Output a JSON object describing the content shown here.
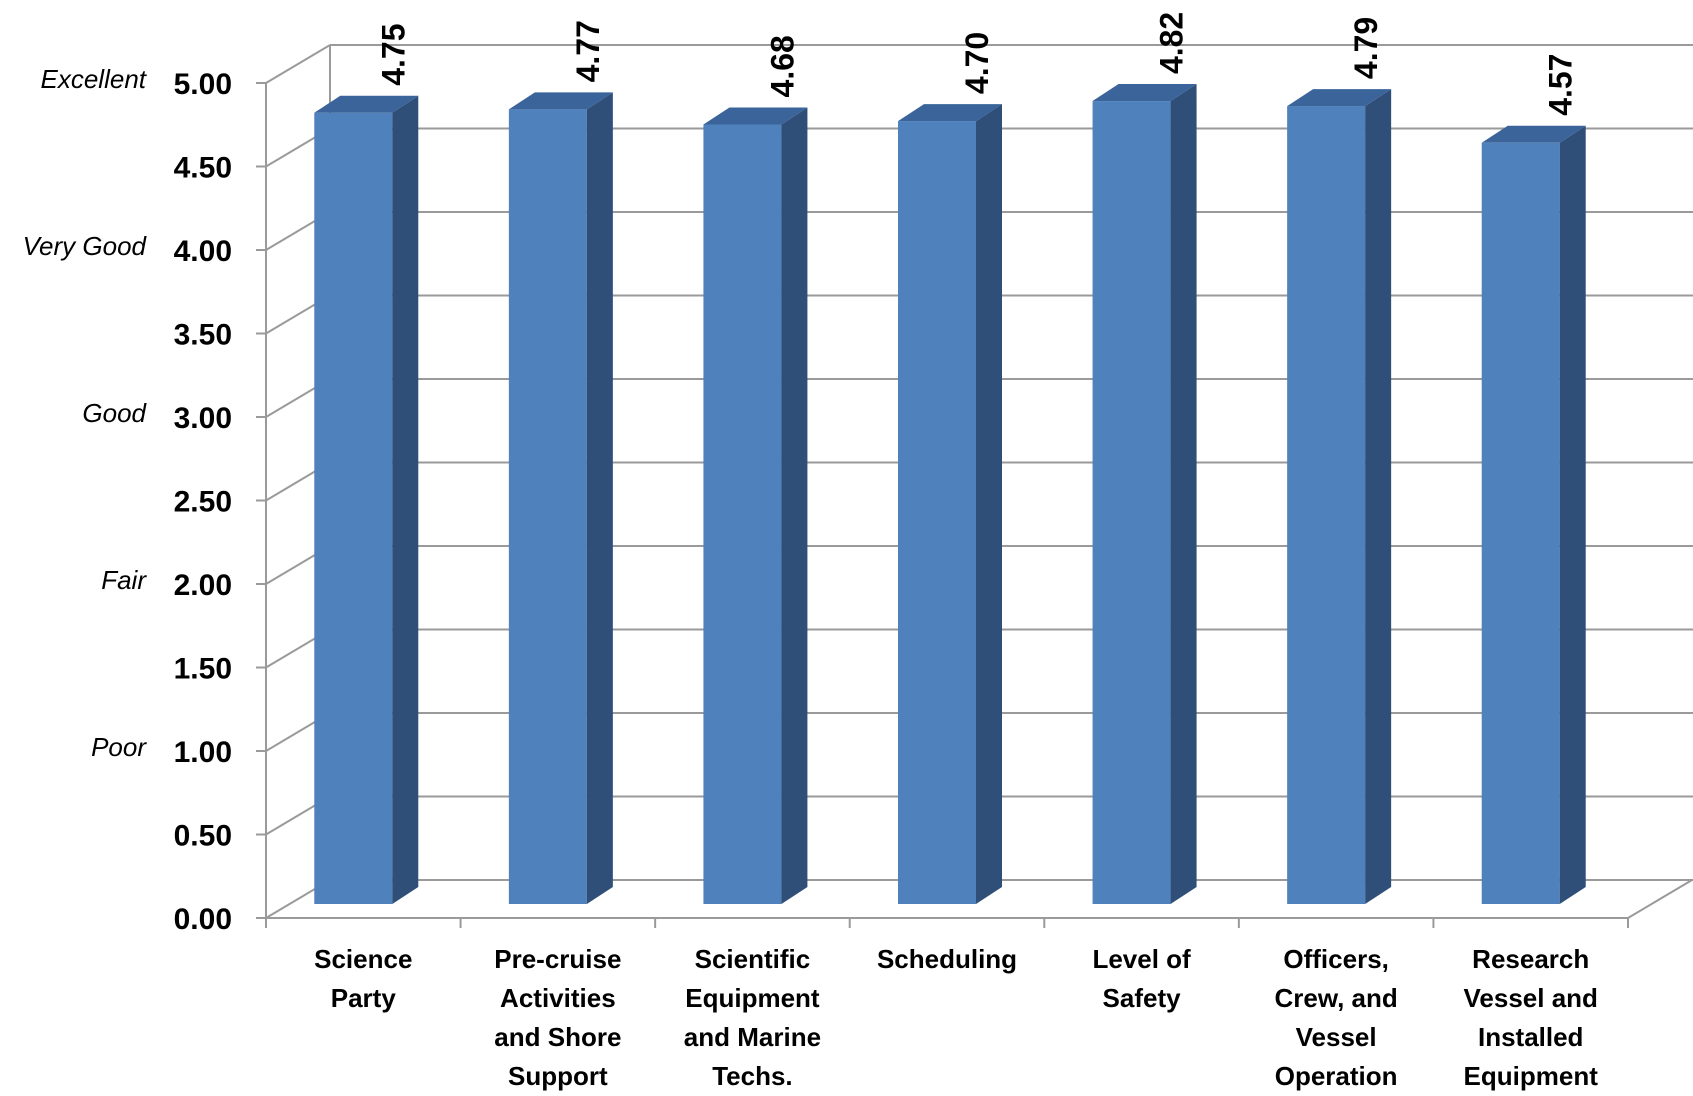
{
  "chart_data": {
    "type": "bar",
    "categories": [
      [
        "Science",
        "Party"
      ],
      [
        "Pre-cruise",
        "Activities",
        "and Shore",
        "Support"
      ],
      [
        "Scientific",
        "Equipment",
        "and Marine",
        "Techs."
      ],
      [
        "Scheduling"
      ],
      [
        "Level of",
        "Safety"
      ],
      [
        "Officers,",
        "Crew, and",
        "Vessel",
        "Operation"
      ],
      [
        "Research",
        "Vessel and",
        "Installed",
        "Equipment"
      ]
    ],
    "values": [
      4.75,
      4.77,
      4.68,
      4.7,
      4.82,
      4.79,
      4.57
    ],
    "value_labels": [
      "4.75",
      "4.77",
      "4.68",
      "4.70",
      "4.82",
      "4.79",
      "4.57"
    ],
    "yticks": [
      "0.00",
      "0.50",
      "1.00",
      "1.50",
      "2.00",
      "2.50",
      "3.00",
      "3.50",
      "4.00",
      "4.50",
      "5.00"
    ],
    "ylim": [
      0,
      5
    ],
    "rating_labels": [
      {
        "value": 5,
        "text": "Excellent"
      },
      {
        "value": 4,
        "text": "Very Good"
      },
      {
        "value": 3,
        "text": "Good"
      },
      {
        "value": 2,
        "text": "Fair"
      },
      {
        "value": 1,
        "text": "Poor"
      }
    ],
    "title": "",
    "xlabel": "",
    "ylabel": "",
    "grid": true,
    "style": "3d-column",
    "colors": {
      "bar_front": "#4F81BD",
      "bar_side": "#2F4F79",
      "bar_top": "#3A649A",
      "grid": "#9a9a9a"
    }
  }
}
